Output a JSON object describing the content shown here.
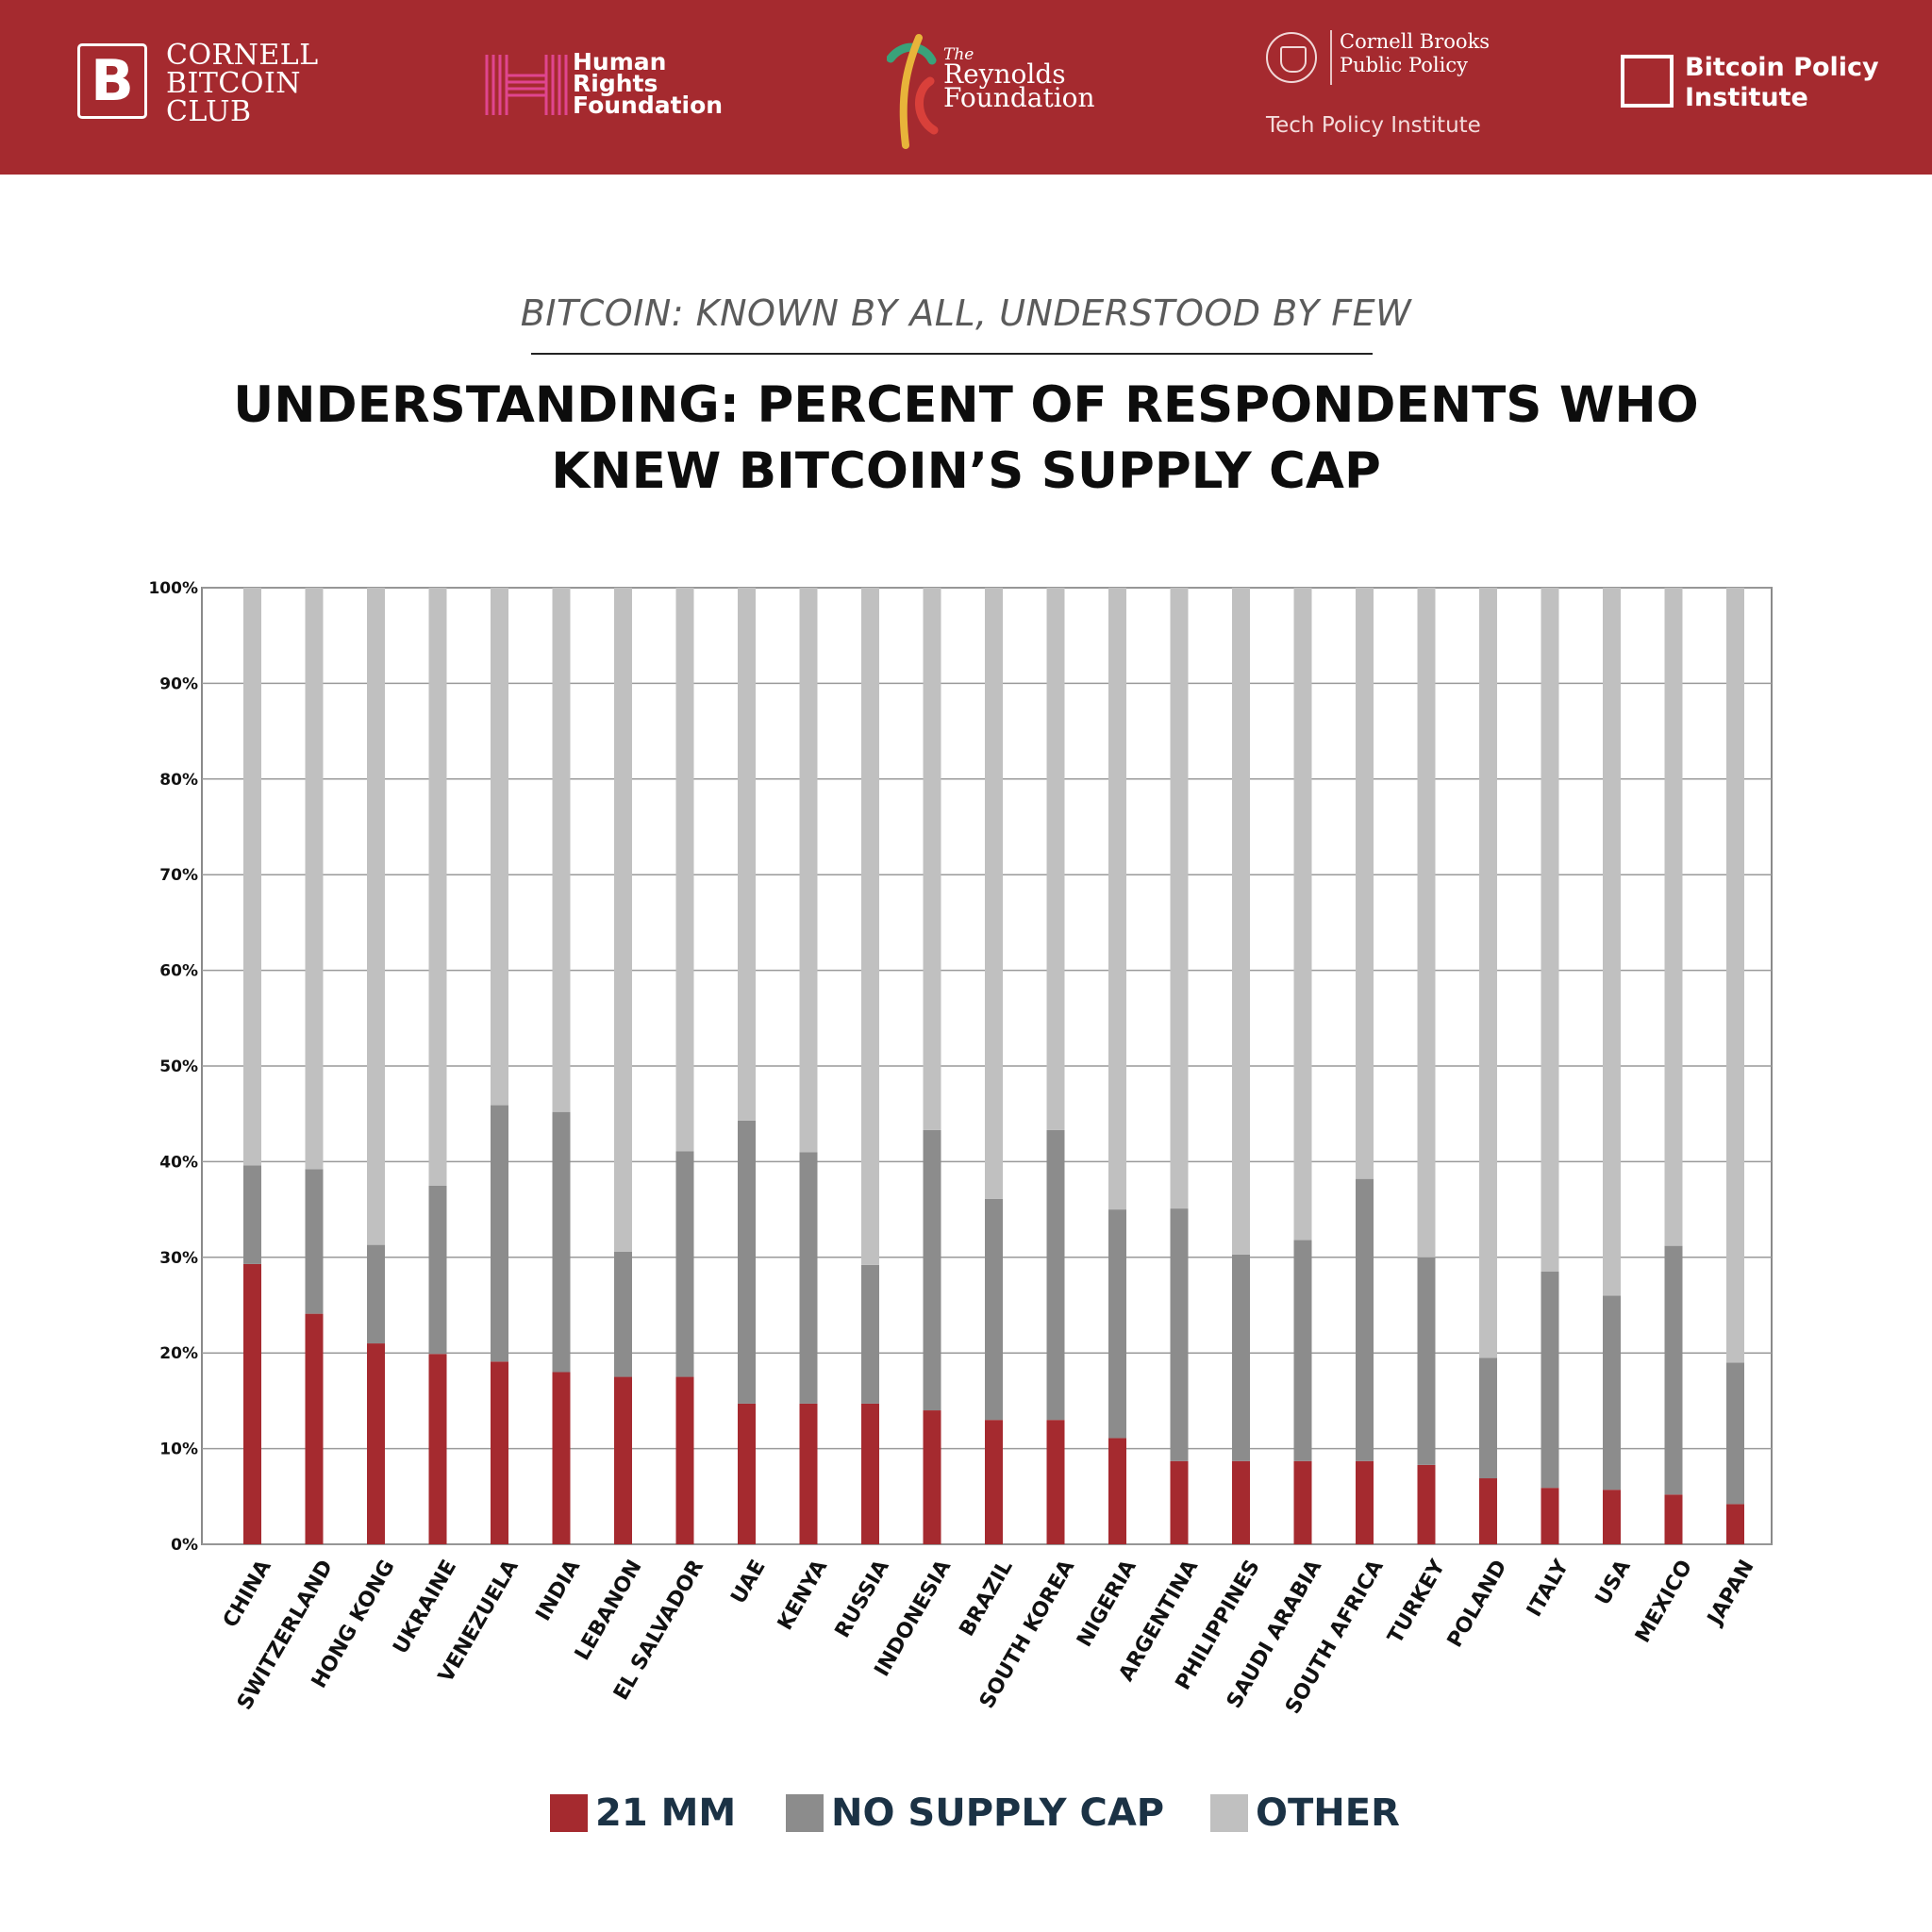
{
  "header": {
    "background": "#a52a2f",
    "logos": {
      "cornell_bitcoin_club": {
        "mark": "B",
        "lines": [
          "CORNELL",
          "BITCOIN",
          "CLUB"
        ]
      },
      "human_rights_foundation": {
        "lines": [
          "Human",
          "Rights",
          "Foundation"
        ]
      },
      "reynolds_foundation": {
        "lines": [
          "The",
          "Reynolds",
          "Foundation"
        ]
      },
      "cornell_brooks": {
        "lines": [
          "Cornell Brooks",
          "Public Policy"
        ],
        "sub": "Tech Policy Institute"
      },
      "bitcoin_policy_institute": {
        "lines": [
          "Bitcoin Policy",
          "Institute"
        ]
      }
    }
  },
  "subtitle": "BITCOIN: KNOWN BY ALL, UNDERSTOOD BY FEW",
  "title_lines": [
    "UNDERSTANDING: PERCENT OF RESPONDENTS WHO",
    "KNEW BITCOIN’S SUPPLY CAP"
  ],
  "colors": {
    "mm21": "#a52a2f",
    "no_cap": "#8c8c8c",
    "other": "#c0c0c0"
  },
  "chart_data": {
    "type": "bar",
    "stacked": true,
    "ylim": [
      0,
      100
    ],
    "yticks": [
      "0%",
      "10%",
      "20%",
      "30%",
      "40%",
      "50%",
      "60%",
      "70%",
      "80%",
      "90%",
      "100%"
    ],
    "categories": [
      "CHINA",
      "SWITZERLAND",
      "HONG KONG",
      "UKRAINE",
      "VENEZUELA",
      "INDIA",
      "LEBANON",
      "EL SALVADOR",
      "UAE",
      "KENYA",
      "RUSSIA",
      "INDONESIA",
      "BRAZIL",
      "SOUTH KOREA",
      "NIGERIA",
      "ARGENTINA",
      "PHILIPPINES",
      "SAUDI ARABIA",
      "SOUTH AFRICA",
      "TURKEY",
      "POLAND",
      "ITALY",
      "USA",
      "MEXICO",
      "JAPAN"
    ],
    "series": [
      {
        "name": "21 MM",
        "values": [
          29.3,
          24.1,
          21.0,
          19.9,
          19.1,
          18.0,
          17.5,
          17.5,
          14.7,
          14.7,
          14.7,
          14.0,
          13.0,
          13.0,
          11.1,
          8.7,
          8.7,
          8.7,
          8.7,
          8.3,
          6.9,
          5.9,
          5.7,
          5.2,
          4.2
        ],
        "color_key": "mm21"
      },
      {
        "name": "NO SUPPLY CAP",
        "values": [
          10.3,
          15.1,
          10.3,
          17.6,
          26.8,
          27.2,
          13.1,
          23.6,
          29.6,
          26.3,
          14.5,
          29.3,
          23.1,
          30.3,
          23.9,
          26.4,
          21.6,
          23.1,
          29.5,
          21.7,
          12.6,
          22.6,
          20.3,
          26.0,
          14.8
        ],
        "color_key": "no_cap"
      },
      {
        "name": "OTHER",
        "values": [
          60.4,
          60.8,
          68.7,
          62.5,
          54.1,
          54.8,
          69.4,
          58.9,
          55.7,
          59.0,
          70.8,
          56.7,
          63.9,
          56.7,
          65.0,
          64.9,
          69.7,
          68.2,
          61.8,
          70.0,
          80.5,
          71.5,
          74.0,
          68.8,
          81.0
        ],
        "color_key": "other"
      }
    ]
  },
  "legend": [
    {
      "label": "21 MM",
      "color_key": "mm21"
    },
    {
      "label": "NO SUPPLY CAP",
      "color_key": "no_cap"
    },
    {
      "label": "OTHER",
      "color_key": "other"
    }
  ]
}
